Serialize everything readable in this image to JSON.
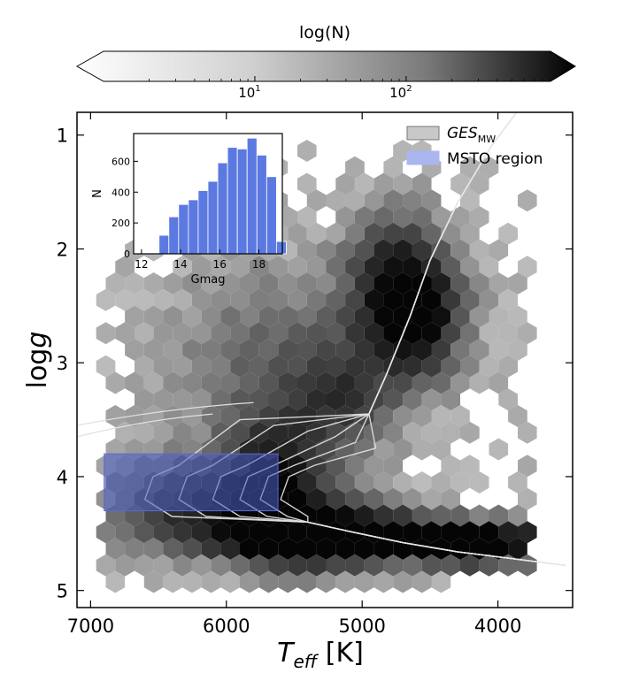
{
  "chart_data": [
    {
      "name": "main-hexbin",
      "type": "heatmap",
      "subtype": "hexbin",
      "xlabel": "T_eff [K]",
      "xlabel_parts": {
        "base": "T",
        "sub": "eff",
        "unit": "[K]"
      },
      "ylabel": "log g",
      "ylabel_parts": {
        "prefix": "log",
        "var": "g"
      },
      "xlim": [
        7100,
        3450
      ],
      "ylim": [
        5.15,
        0.8
      ],
      "x_inverted": true,
      "y_inverted": true,
      "xticks": [
        7000,
        6000,
        5000,
        4000
      ],
      "xtick_labels": [
        "7000",
        "6000",
        "5000",
        "4000"
      ],
      "yticks": [
        1,
        2,
        3,
        4,
        5
      ],
      "ytick_labels": [
        "1",
        "2",
        "3",
        "4",
        "5"
      ],
      "legend_position": "top-right",
      "legend": [
        {
          "label_italic": "GES",
          "label_sub": "MW",
          "color": "#c8c8c8"
        },
        {
          "label": "MSTO region",
          "color": "#aab6ef"
        }
      ],
      "msto_region": {
        "teff_min": 5620,
        "teff_max": 6900,
        "logg_min": 3.8,
        "logg_max": 4.3,
        "color": "#4a5cc4"
      },
      "density_peaks": [
        {
          "teff": 4600,
          "logg": 4.55,
          "amp": 1.0,
          "s_teff": 850,
          "s_logg": 0.12
        },
        {
          "teff": 5300,
          "logg": 4.5,
          "amp": 0.9,
          "s_teff": 450,
          "s_logg": 0.2
        },
        {
          "teff": 5650,
          "logg": 4.05,
          "amp": 0.8,
          "s_teff": 260,
          "s_logg": 0.38
        },
        {
          "teff": 4580,
          "logg": 2.55,
          "amp": 0.95,
          "s_teff": 230,
          "s_logg": 0.38
        },
        {
          "teff": 4820,
          "logg": 2.3,
          "amp": 0.55,
          "s_teff": 220,
          "s_logg": 0.45
        },
        {
          "teff": 5150,
          "logg": 3.3,
          "amp": 0.45,
          "s_teff": 260,
          "s_logg": 0.35
        },
        {
          "teff": 6050,
          "logg": 4.25,
          "amp": 0.45,
          "s_teff": 350,
          "s_logg": 0.25
        },
        {
          "teff": 6500,
          "logg": 4.25,
          "amp": 0.35,
          "s_teff": 300,
          "s_logg": 0.25
        },
        {
          "teff": 4120,
          "logg": 4.65,
          "amp": 0.5,
          "s_teff": 280,
          "s_logg": 0.12
        },
        {
          "teff": 5700,
          "logg": 3.0,
          "amp": 0.3,
          "s_teff": 500,
          "s_logg": 0.6
        }
      ],
      "isochrones": [
        {
          "turnoff_teff": 5600,
          "sg_logg": 4.3
        },
        {
          "turnoff_teff": 5750,
          "sg_logg": 4.25
        },
        {
          "turnoff_teff": 5900,
          "sg_logg": 4.2
        },
        {
          "turnoff_teff": 6100,
          "sg_logg": 4.15
        },
        {
          "turnoff_teff": 6350,
          "sg_logg": 4.1
        },
        {
          "turnoff_teff": 6600,
          "sg_logg": 3.95
        }
      ]
    },
    {
      "name": "inset-histogram",
      "type": "bar",
      "xlabel": "Gmag",
      "ylabel": "N",
      "xlim": [
        11.6,
        19.2
      ],
      "ylim": [
        0,
        780
      ],
      "xticks": [
        12,
        14,
        16,
        18
      ],
      "xtick_labels": [
        "12",
        "14",
        "16",
        "18"
      ],
      "yticks": [
        0,
        200,
        400,
        600
      ],
      "ytick_labels": [
        "0",
        "200",
        "400",
        "600"
      ],
      "bin_width": 0.5,
      "bin_edges_start": 12.9,
      "values": [
        120,
        240,
        320,
        350,
        410,
        470,
        590,
        690,
        680,
        750,
        640,
        500,
        80
      ],
      "color": "#5b79e0"
    },
    {
      "name": "colorbar",
      "type": "colorbar",
      "label": "log(N)",
      "scale": "log",
      "range": [
        1,
        900
      ],
      "ticks": [
        10,
        100
      ],
      "tick_label_bases": [
        "10",
        "10"
      ],
      "tick_label_exps": [
        "1",
        "2"
      ],
      "extend": "both"
    }
  ]
}
